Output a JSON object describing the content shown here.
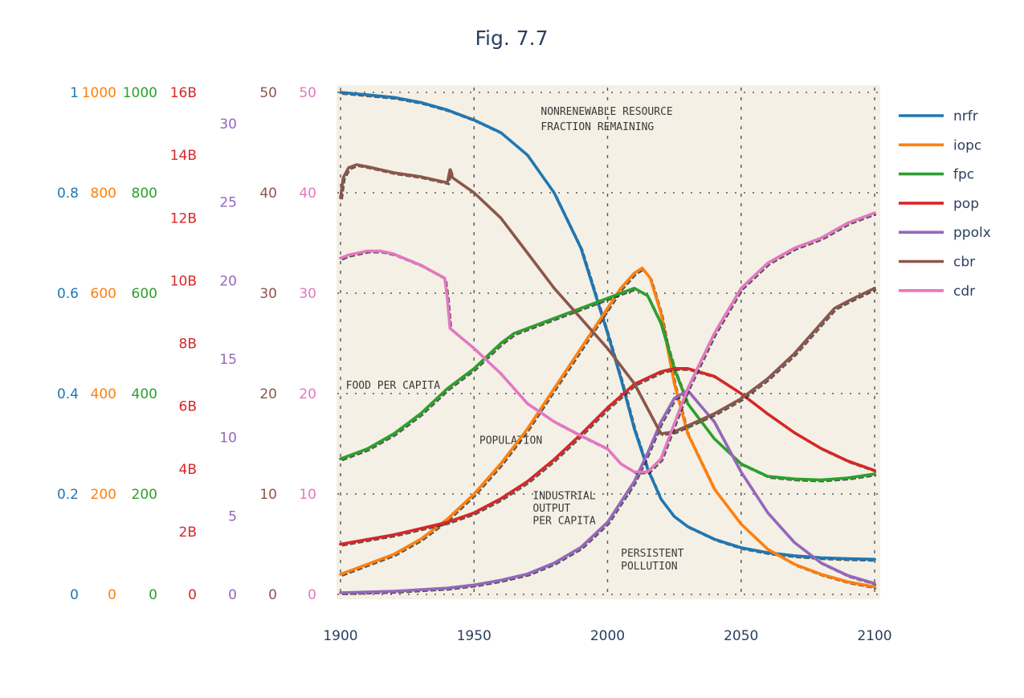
{
  "chart_data": {
    "type": "line",
    "title": "Fig. 7.7",
    "xlabel": "",
    "x_ticks": [
      "1900",
      "1950",
      "2000",
      "2050",
      "2100"
    ],
    "xlim": [
      1900,
      2100
    ],
    "background": "scanned figure of the original World3 run (beige paper, dotted grid, hand-drawn curves)",
    "grid": true,
    "legend_position": "right",
    "annotations": [
      {
        "text": "NONRENEWABLE RESOURCE",
        "x": 1975,
        "y_frac": 0.955
      },
      {
        "text": "FRACTION REMAINING",
        "x": 1975,
        "y_frac": 0.925
      },
      {
        "text": "FOOD PER CAPITA",
        "x": 1902,
        "y_frac": 0.41
      },
      {
        "text": "POPULATION",
        "x": 1952,
        "y_frac": 0.3
      },
      {
        "text": "INDUSTRIAL",
        "x": 1972,
        "y_frac": 0.19
      },
      {
        "text": "OUTPUT",
        "x": 1972,
        "y_frac": 0.165
      },
      {
        "text": "PER CAPITA",
        "x": 1972,
        "y_frac": 0.14
      },
      {
        "text": "PERSISTENT",
        "x": 2005,
        "y_frac": 0.075
      },
      {
        "text": "POLLUTION",
        "x": 2005,
        "y_frac": 0.05
      }
    ],
    "axes": [
      {
        "series": "nrfr",
        "color": "#1f77b4",
        "range": [
          0,
          1
        ],
        "ticks": [
          [
            0,
            "0"
          ],
          [
            0.2,
            "0.2"
          ],
          [
            0.4,
            "0.4"
          ],
          [
            0.6,
            "0.6"
          ],
          [
            0.8,
            "0.8"
          ],
          [
            1,
            "1"
          ]
        ]
      },
      {
        "series": "iopc",
        "color": "#ff7f0e",
        "range": [
          0,
          1000
        ],
        "ticks": [
          [
            0,
            "0"
          ],
          [
            200,
            "200"
          ],
          [
            400,
            "400"
          ],
          [
            600,
            "600"
          ],
          [
            800,
            "800"
          ],
          [
            1000,
            "1000"
          ]
        ]
      },
      {
        "series": "fpc",
        "color": "#2ca02c",
        "range": [
          0,
          1000
        ],
        "ticks": [
          [
            0,
            "0"
          ],
          [
            200,
            "200"
          ],
          [
            400,
            "400"
          ],
          [
            600,
            "600"
          ],
          [
            800,
            "800"
          ],
          [
            1000,
            "1000"
          ]
        ]
      },
      {
        "series": "pop",
        "color": "#d62728",
        "range": [
          0,
          16000000000
        ],
        "ticks": [
          [
            0,
            "0"
          ],
          [
            2000000000,
            "2B"
          ],
          [
            4000000000,
            "4B"
          ],
          [
            6000000000,
            "6B"
          ],
          [
            8000000000,
            "8B"
          ],
          [
            10000000000,
            "10B"
          ],
          [
            12000000000,
            "12B"
          ],
          [
            14000000000,
            "14B"
          ],
          [
            16000000000,
            "16B"
          ]
        ]
      },
      {
        "series": "ppolx",
        "color": "#9467bd",
        "range": [
          0,
          32
        ],
        "ticks": [
          [
            0,
            "0"
          ],
          [
            5,
            "5"
          ],
          [
            10,
            "10"
          ],
          [
            15,
            "15"
          ],
          [
            20,
            "20"
          ],
          [
            25,
            "25"
          ],
          [
            30,
            "30"
          ]
        ]
      },
      {
        "series": "cbr",
        "color": "#8c564b",
        "range": [
          0,
          50
        ],
        "ticks": [
          [
            0,
            "0"
          ],
          [
            10,
            "10"
          ],
          [
            20,
            "20"
          ],
          [
            30,
            "30"
          ],
          [
            40,
            "40"
          ],
          [
            50,
            "50"
          ]
        ]
      },
      {
        "series": "cdr",
        "color": "#e377c2",
        "range": [
          0,
          50
        ],
        "ticks": [
          [
            0,
            "0"
          ],
          [
            10,
            "10"
          ],
          [
            20,
            "20"
          ],
          [
            30,
            "30"
          ],
          [
            40,
            "40"
          ],
          [
            50,
            "50"
          ]
        ]
      }
    ],
    "series": [
      {
        "name": "nrfr",
        "color": "#1f77b4",
        "x": [
          1900,
          1910,
          1920,
          1930,
          1940,
          1950,
          1960,
          1970,
          1980,
          1990,
          2000,
          2005,
          2010,
          2015,
          2020,
          2025,
          2030,
          2040,
          2050,
          2060,
          2070,
          2080,
          2090,
          2100
        ],
        "y": [
          1.0,
          0.995,
          0.99,
          0.98,
          0.965,
          0.945,
          0.92,
          0.875,
          0.8,
          0.69,
          0.52,
          0.43,
          0.33,
          0.25,
          0.19,
          0.155,
          0.135,
          0.11,
          0.093,
          0.083,
          0.077,
          0.073,
          0.071,
          0.07
        ]
      },
      {
        "name": "iopc",
        "color": "#ff7f0e",
        "x": [
          1900,
          1910,
          1920,
          1930,
          1940,
          1950,
          1960,
          1970,
          1980,
          1990,
          2000,
          2005,
          2010,
          2013,
          2016,
          2020,
          2025,
          2030,
          2040,
          2050,
          2060,
          2070,
          2080,
          2090,
          2100
        ],
        "y": [
          40,
          60,
          80,
          110,
          150,
          200,
          260,
          330,
          410,
          490,
          570,
          610,
          640,
          650,
          630,
          560,
          420,
          320,
          210,
          140,
          90,
          60,
          40,
          25,
          15
        ]
      },
      {
        "name": "fpc",
        "color": "#2ca02c",
        "x": [
          1900,
          1910,
          1920,
          1930,
          1940,
          1950,
          1960,
          1965,
          1970,
          1980,
          1990,
          2000,
          2005,
          2010,
          2015,
          2020,
          2025,
          2030,
          2040,
          2050,
          2060,
          2070,
          2080,
          2090,
          2100
        ],
        "y": [
          270,
          290,
          320,
          360,
          410,
          450,
          500,
          520,
          530,
          550,
          570,
          590,
          600,
          610,
          595,
          540,
          450,
          380,
          310,
          260,
          235,
          230,
          228,
          232,
          240
        ]
      },
      {
        "name": "pop",
        "color": "#d62728",
        "x": [
          1900,
          1910,
          1920,
          1930,
          1940,
          1950,
          1960,
          1970,
          1980,
          1990,
          2000,
          2010,
          2020,
          2025,
          2030,
          2040,
          2050,
          2060,
          2070,
          2080,
          2090,
          2100
        ],
        "y": [
          1600000000,
          1750000000,
          1900000000,
          2100000000,
          2300000000,
          2600000000,
          3050000000,
          3600000000,
          4300000000,
          5100000000,
          5950000000,
          6700000000,
          7100000000,
          7200000000,
          7200000000,
          6950000000,
          6400000000,
          5750000000,
          5150000000,
          4650000000,
          4250000000,
          3950000000
        ]
      },
      {
        "name": "ppolx",
        "color": "#9467bd",
        "x": [
          1900,
          1920,
          1940,
          1950,
          1960,
          1970,
          1980,
          1990,
          2000,
          2010,
          2015,
          2020,
          2025,
          2030,
          2040,
          2050,
          2060,
          2070,
          2080,
          2090,
          2100
        ],
        "y": [
          0.1,
          0.2,
          0.4,
          0.6,
          0.9,
          1.3,
          2.0,
          3.0,
          4.6,
          7.2,
          9.0,
          11.0,
          12.5,
          13.0,
          11.0,
          7.8,
          5.2,
          3.3,
          2.0,
          1.2,
          0.7
        ]
      },
      {
        "name": "cbr",
        "color": "#8c564b",
        "x": [
          1900,
          1901,
          1903,
          1906,
          1910,
          1920,
          1930,
          1940,
          1941,
          1942,
          1950,
          1960,
          1970,
          1980,
          1990,
          2000,
          2010,
          2017,
          2020,
          2025,
          2030,
          2040,
          2050,
          2060,
          2070,
          2080,
          2085,
          2090,
          2100
        ],
        "y": [
          39.5,
          41.5,
          42.5,
          42.8,
          42.6,
          42.0,
          41.6,
          41.0,
          42.3,
          41.5,
          40.0,
          37.5,
          34.0,
          30.5,
          27.5,
          24.5,
          21.0,
          17.5,
          16.0,
          16.2,
          16.8,
          18.0,
          19.5,
          21.5,
          24.0,
          27.0,
          28.5,
          29.2,
          30.5
        ]
      },
      {
        "name": "cdr",
        "color": "#e377c2",
        "x": [
          1900,
          1903,
          1910,
          1915,
          1920,
          1930,
          1939,
          1940,
          1941,
          1950,
          1960,
          1970,
          1980,
          1990,
          2000,
          2005,
          2010,
          2015,
          2020,
          2025,
          2030,
          2040,
          2050,
          2060,
          2070,
          2080,
          2090,
          2100
        ],
        "y": [
          33.5,
          33.8,
          34.2,
          34.2,
          33.9,
          32.8,
          31.5,
          29.5,
          26.5,
          24.5,
          22.0,
          19.0,
          17.2,
          15.8,
          14.5,
          13.0,
          12.2,
          12.2,
          13.5,
          17.0,
          20.5,
          26.0,
          30.5,
          33.0,
          34.5,
          35.5,
          37.0,
          38.0
        ]
      }
    ]
  }
}
